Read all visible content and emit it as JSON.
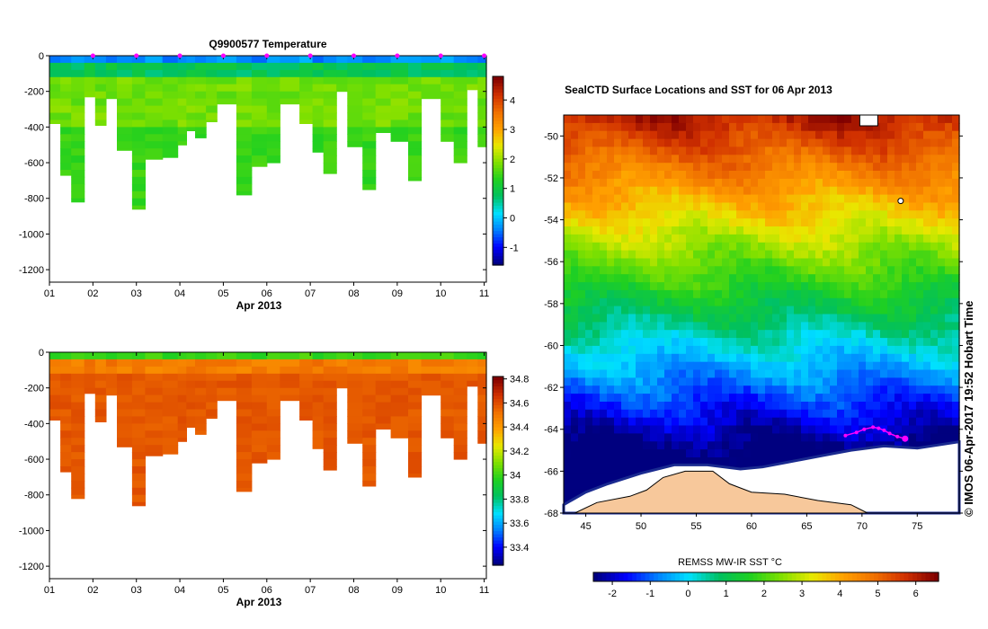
{
  "chart_data": [
    {
      "type": "heatmap",
      "id": "temperature",
      "title": "Q9900577  Temperature",
      "xlabel": "Apr 2013",
      "ylabel": "",
      "x_ticks": [
        "01",
        "02",
        "03",
        "04",
        "05",
        "06",
        "07",
        "08",
        "09",
        "10",
        "11"
      ],
      "y_ticks": [
        "0",
        "-200",
        "-400",
        "-600",
        "-800",
        "-1000",
        "-1200"
      ],
      "xlim": [
        1,
        11.05
      ],
      "ylim": [
        -1270,
        0
      ],
      "colorbar": {
        "ticks": [
          "-1",
          "0",
          "1",
          "2",
          "3",
          "4"
        ],
        "range": [
          -1.6,
          4.8
        ]
      },
      "profile_days": [
        1.0,
        1.25,
        1.5,
        1.8,
        2.05,
        2.3,
        2.55,
        2.9,
        3.2,
        3.6,
        3.95,
        4.15,
        4.35,
        4.6,
        4.85,
        5.3,
        5.65,
        6.0,
        6.3,
        6.75,
        7.05,
        7.3,
        7.6,
        7.85,
        8.2,
        8.5,
        8.85,
        9.25,
        9.55,
        10.0,
        10.3,
        10.6,
        10.85
      ],
      "profile_max_depth": [
        -380,
        -670,
        -820,
        -230,
        -390,
        -240,
        -530,
        -860,
        -580,
        -570,
        -500,
        -420,
        -460,
        -370,
        -270,
        -780,
        -620,
        -600,
        -270,
        -380,
        -540,
        -660,
        -200,
        -510,
        -750,
        -430,
        -480,
        -700,
        -240,
        -480,
        -600,
        -190,
        -510
      ],
      "surface_marker_days": [
        2,
        3,
        4,
        5,
        6,
        7,
        8,
        9,
        10,
        11
      ]
    },
    {
      "type": "heatmap",
      "id": "salinity",
      "title": "",
      "xlabel": "Apr 2013",
      "ylabel": "",
      "x_ticks": [
        "01",
        "02",
        "03",
        "04",
        "05",
        "06",
        "07",
        "08",
        "09",
        "10",
        "11"
      ],
      "y_ticks": [
        "0",
        "-200",
        "-400",
        "-600",
        "-800",
        "-1000",
        "-1200"
      ],
      "xlim": [
        1,
        11.05
      ],
      "ylim": [
        -1270,
        0
      ],
      "colorbar": {
        "ticks": [
          "33.4",
          "33.6",
          "33.8",
          "34",
          "34.2",
          "34.4",
          "34.6",
          "34.8"
        ],
        "range": [
          33.25,
          34.82
        ]
      },
      "profile_days": [
        1.0,
        1.25,
        1.5,
        1.8,
        2.05,
        2.3,
        2.55,
        2.9,
        3.2,
        3.6,
        3.95,
        4.15,
        4.35,
        4.6,
        4.85,
        5.3,
        5.65,
        6.0,
        6.3,
        6.75,
        7.05,
        7.3,
        7.6,
        7.85,
        8.2,
        8.5,
        8.85,
        9.25,
        9.55,
        10.0,
        10.3,
        10.6,
        10.85
      ],
      "profile_max_depth": [
        -380,
        -670,
        -820,
        -230,
        -390,
        -240,
        -530,
        -860,
        -580,
        -570,
        -500,
        -420,
        -460,
        -370,
        -270,
        -780,
        -620,
        -600,
        -270,
        -380,
        -540,
        -660,
        -200,
        -510,
        -750,
        -430,
        -480,
        -700,
        -240,
        -480,
        -600,
        -190,
        -510
      ]
    },
    {
      "type": "heatmap",
      "id": "sst_map",
      "title": "SealCTD Surface Locations and SST for 06 Apr 2013",
      "xlabel": "",
      "x_ticks": [
        "45",
        "50",
        "55",
        "60",
        "65",
        "70",
        "75"
      ],
      "y_ticks": [
        "-50",
        "-52",
        "-54",
        "-56",
        "-58",
        "-60",
        "-62",
        "-64",
        "-66",
        "-68"
      ],
      "xlim": [
        43,
        78.8
      ],
      "ylim": [
        -68,
        -49
      ],
      "colorbar": {
        "label": "REMSS MW-IR SST °C",
        "ticks": [
          "-2",
          "-1",
          "0",
          "1",
          "2",
          "3",
          "4",
          "5",
          "6"
        ],
        "range": [
          -2.5,
          6.6
        ]
      },
      "track_lon": [
        68.5,
        69.5,
        70.2,
        71.0,
        71.5,
        72.0,
        72.5,
        73.2,
        73.9
      ],
      "track_lat": [
        -64.3,
        -64.15,
        -64.0,
        -63.9,
        -63.95,
        -64.05,
        -64.2,
        -64.35,
        -64.45
      ],
      "credit": "© IMOS 06-Apr-2017 19:52 Hobart Time"
    }
  ],
  "colors": {
    "track": "#ff00ff",
    "land": "#f7c89b",
    "ice": "#ffffff"
  }
}
